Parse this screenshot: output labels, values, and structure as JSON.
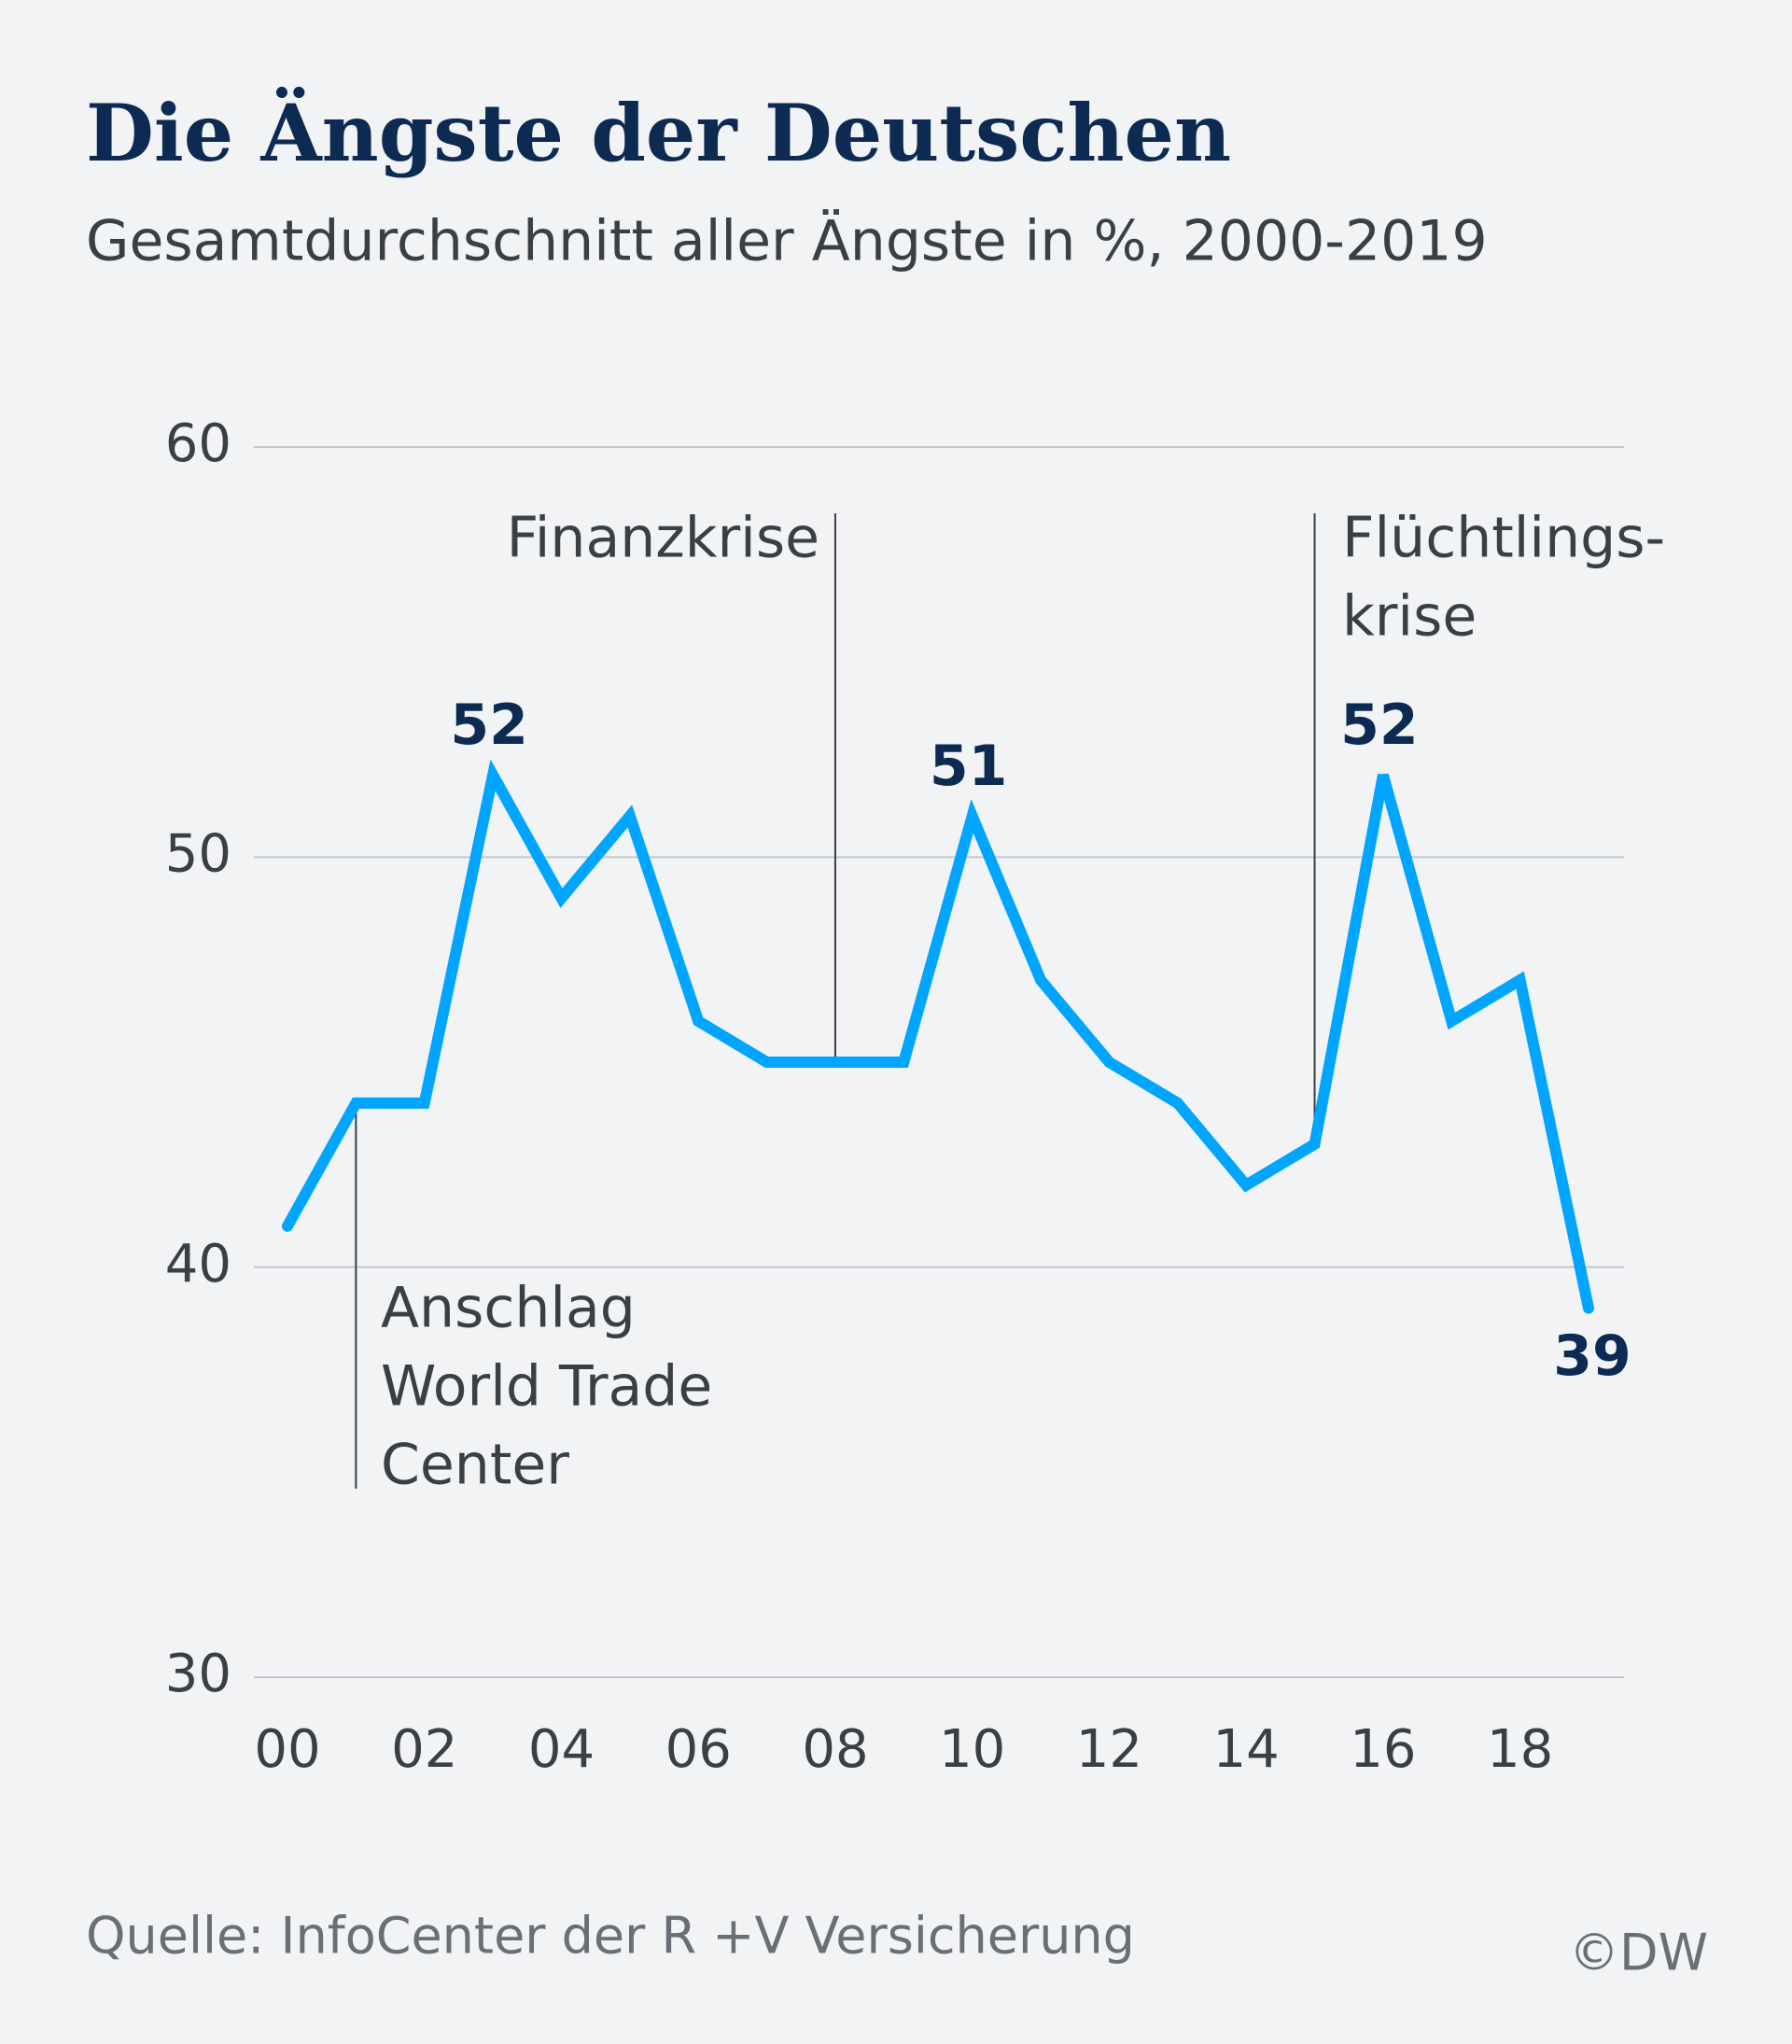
{
  "chart_data": {
    "type": "line",
    "title": "Die Ängste der Deutschen",
    "subtitle": "Gesamtdurchschnitt aller Ängste in %,  2000-2019",
    "source": "Quelle: InfoCenter der R +V Versicherung",
    "credit": "©DW",
    "categories": [
      "00",
      null,
      "02",
      null,
      "04",
      null,
      "06",
      null,
      "08",
      null,
      "10",
      null,
      "12",
      null,
      "14",
      null,
      "16",
      null,
      "18",
      null
    ],
    "series": [
      {
        "name": "Gesamtdurchschnitt",
        "color": "#00a5ff",
        "values": [
          41,
          44,
          44,
          52,
          49,
          51,
          46,
          45,
          45,
          45,
          51,
          47,
          45,
          44,
          42,
          43,
          52,
          46,
          47,
          39
        ],
        "value_labels": [
          null,
          null,
          null,
          "52",
          null,
          null,
          null,
          null,
          null,
          null,
          "51",
          null,
          null,
          null,
          null,
          null,
          "52",
          null,
          null,
          "39"
        ]
      }
    ],
    "ylim": [
      30,
      60
    ],
    "yticks": [
      30,
      40,
      50,
      60
    ],
    "grid": true,
    "annotations": [
      {
        "lines": [
          "Anschlag",
          "World Trade",
          "Center"
        ]
      },
      {
        "lines": [
          "Finanzkrise"
        ]
      },
      {
        "lines": [
          "Flüchtlings-",
          "krise"
        ]
      }
    ]
  }
}
